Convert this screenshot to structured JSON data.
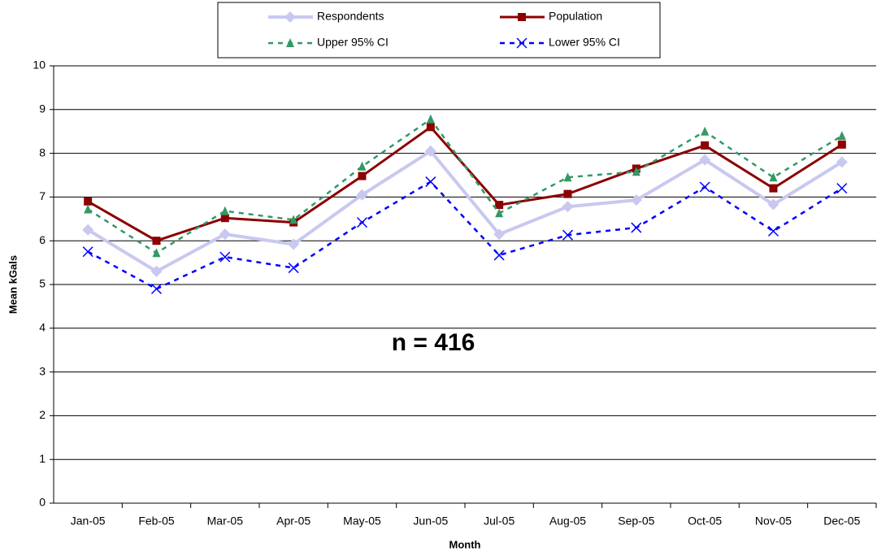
{
  "chart_data": {
    "type": "line",
    "x_label": "Month",
    "y_label": "Mean kGals",
    "annotation": "n = 416",
    "categories": [
      "Jan-05",
      "Feb-05",
      "Mar-05",
      "Apr-05",
      "May-05",
      "Jun-05",
      "Jul-05",
      "Aug-05",
      "Sep-05",
      "Oct-05",
      "Nov-05",
      "Dec-05"
    ],
    "series": [
      {
        "name": "Respondents",
        "color": "#c8c8f0",
        "marker": "diamond",
        "dashed": false,
        "width": 4,
        "values": [
          6.25,
          5.3,
          6.15,
          5.92,
          7.05,
          8.05,
          6.15,
          6.78,
          6.93,
          7.85,
          6.83,
          7.8
        ]
      },
      {
        "name": "Population",
        "color": "#8b0000",
        "marker": "square",
        "dashed": false,
        "width": 3,
        "values": [
          6.9,
          6.0,
          6.52,
          6.42,
          7.48,
          8.6,
          6.82,
          7.07,
          7.65,
          8.18,
          7.2,
          8.2
        ]
      },
      {
        "name": "Upper 95% CI",
        "color": "#339966",
        "marker": "triangle",
        "dashed": true,
        "width": 2.5,
        "values": [
          6.72,
          5.72,
          6.68,
          6.48,
          7.7,
          8.78,
          6.63,
          7.45,
          7.58,
          8.5,
          7.45,
          8.4
        ]
      },
      {
        "name": "Lower 95% CI",
        "color": "#0000ff",
        "marker": "x",
        "dashed": true,
        "width": 2.5,
        "values": [
          5.75,
          4.9,
          5.63,
          5.38,
          6.42,
          7.35,
          5.67,
          6.13,
          6.3,
          7.23,
          6.22,
          7.2
        ]
      }
    ],
    "ylim": [
      0,
      10
    ],
    "yticks": [
      0,
      1,
      2,
      3,
      4,
      5,
      6,
      7,
      8,
      9,
      10
    ],
    "grid": true,
    "legend": "top"
  }
}
